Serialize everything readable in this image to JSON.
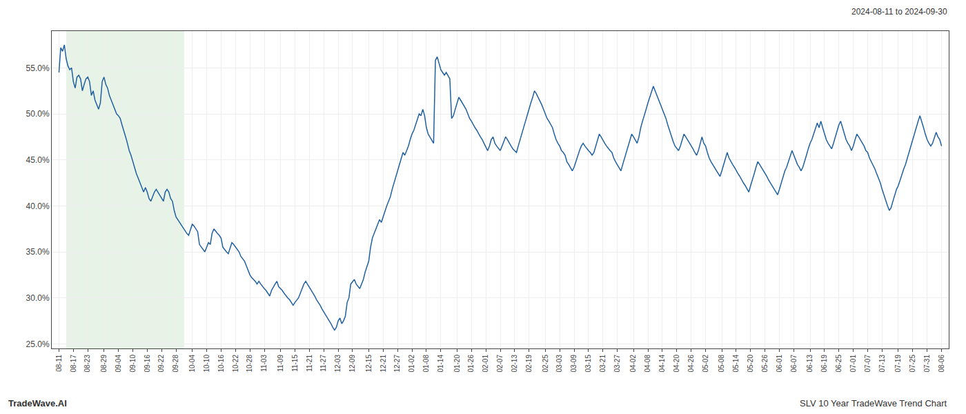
{
  "chart_data": {
    "type": "line",
    "title": "SLV 10 Year TradeWave Trend Chart",
    "subtitle": "2024-08-11 to 2024-09-30",
    "annotations": [
      "TradeWave.AI"
    ],
    "color": "#2060a0",
    "grid": true,
    "ylim": [
      24.5,
      59.0
    ],
    "yticks": [
      {
        "value": 25.0,
        "label": "25.0%"
      },
      {
        "value": 30.0,
        "label": "30.0%"
      },
      {
        "value": 35.0,
        "label": "35.0%"
      },
      {
        "value": 40.0,
        "label": "40.0%"
      },
      {
        "value": 45.0,
        "label": "45.0%"
      },
      {
        "value": 50.0,
        "label": "50.0%"
      },
      {
        "value": 55.0,
        "label": "55.0%"
      }
    ],
    "shade": {
      "from": "08-17",
      "to": "09-28",
      "color": "#d4ead4"
    },
    "categories": [
      "08-11",
      null,
      null,
      null,
      null,
      null,
      null,
      null,
      "08-17",
      null,
      null,
      null,
      null,
      null,
      null,
      null,
      "08-23",
      null,
      null,
      null,
      null,
      null,
      null,
      null,
      null,
      "08-29",
      null,
      null,
      null,
      null,
      null,
      null,
      null,
      "09-04",
      null,
      null,
      null,
      null,
      null,
      null,
      null,
      "09-10",
      null,
      null,
      null,
      null,
      null,
      null,
      null,
      "09-16",
      null,
      null,
      null,
      null,
      null,
      null,
      null,
      "09-22",
      null,
      null,
      null,
      null,
      null,
      null,
      null,
      "09-28",
      null,
      null,
      null,
      null,
      null,
      null,
      null,
      null,
      "10-04",
      null,
      null,
      null,
      null,
      null,
      null,
      null,
      "10-10",
      null,
      null,
      null,
      null,
      null,
      null,
      null,
      "10-16",
      null,
      null,
      null,
      null,
      null,
      null,
      null,
      "10-22",
      null,
      null,
      null,
      null,
      null,
      null,
      null,
      "10-28",
      null,
      null,
      null,
      null,
      null,
      null,
      null,
      "11-03",
      null,
      null,
      null,
      null,
      null,
      null,
      null,
      null,
      "11-09",
      null,
      null,
      null,
      null,
      null,
      null,
      null,
      "11-15",
      null,
      null,
      null,
      null,
      null,
      null,
      null,
      "11-21",
      null,
      null,
      null,
      null,
      null,
      null,
      null,
      "11-27",
      null,
      null,
      null,
      null,
      null,
      null,
      null,
      "12-03",
      null,
      null,
      null,
      null,
      null,
      null,
      null,
      "12-09",
      null,
      null,
      null,
      null,
      null,
      null,
      null,
      null,
      "12-15",
      null,
      null,
      null,
      null,
      null,
      null,
      null,
      "12-21",
      null,
      null,
      null,
      null,
      null,
      null,
      null,
      "12-27",
      null,
      null,
      null,
      null,
      null,
      null,
      null,
      "01-02",
      null,
      null,
      null,
      null,
      null,
      null,
      null,
      "01-08",
      null,
      null,
      null,
      null,
      null,
      null,
      null,
      "01-14",
      null,
      null,
      null,
      null,
      null,
      null,
      null,
      null,
      "01-20",
      null,
      null,
      null,
      null,
      null,
      null,
      null,
      "01-26",
      null,
      null,
      null,
      null,
      null,
      null,
      null,
      "02-01",
      null,
      null,
      null,
      null,
      null,
      null,
      null,
      "02-07",
      null,
      null,
      null,
      null,
      null,
      null,
      null,
      "02-13",
      null,
      null,
      null,
      null,
      null,
      null,
      null,
      "02-19",
      null,
      null,
      null,
      null,
      null,
      null,
      null,
      null,
      "02-25",
      null,
      null,
      null,
      null,
      null,
      null,
      null,
      "03-03",
      null,
      null,
      null,
      null,
      null,
      null,
      null,
      "03-09",
      null,
      null,
      null,
      null,
      null,
      null,
      null,
      "03-15",
      null,
      null,
      null,
      null,
      null,
      null,
      null,
      "03-21",
      null,
      null,
      null,
      null,
      null,
      null,
      null,
      "03-27",
      null,
      null,
      null,
      null,
      null,
      null,
      null,
      null,
      "04-02",
      null,
      null,
      null,
      null,
      null,
      null,
      null,
      "04-08",
      null,
      null,
      null,
      null,
      null,
      null,
      null,
      "04-14",
      null,
      null,
      null,
      null,
      null,
      null,
      null,
      "04-20",
      null,
      null,
      null,
      null,
      null,
      null,
      null,
      "04-26",
      null,
      null,
      null,
      null,
      null,
      null,
      null,
      "05-02",
      null,
      null,
      null,
      null,
      null,
      null,
      null,
      null,
      "05-08",
      null,
      null,
      null,
      null,
      null,
      null,
      null,
      "05-14",
      null,
      null,
      null,
      null,
      null,
      null,
      null,
      "05-20",
      null,
      null,
      null,
      null,
      null,
      null,
      null,
      "05-26",
      null,
      null,
      null,
      null,
      null,
      null,
      null,
      "06-01",
      null,
      null,
      null,
      null,
      null,
      null,
      null,
      "06-07",
      null,
      null,
      null,
      null,
      null,
      null,
      null,
      null,
      "06-13",
      null,
      null,
      null,
      null,
      null,
      null,
      null,
      "06-19",
      null,
      null,
      null,
      null,
      null,
      null,
      null,
      "06-25",
      null,
      null,
      null,
      null,
      null,
      null,
      null,
      "07-01",
      null,
      null,
      null,
      null,
      null,
      null,
      null,
      "07-07",
      null,
      null,
      null,
      null,
      null,
      null,
      null,
      "07-13",
      null,
      null,
      null,
      null,
      null,
      null,
      null,
      null,
      "07-19",
      null,
      null,
      null,
      null,
      null,
      null,
      null,
      "07-25",
      null,
      null,
      null,
      null,
      null,
      null,
      null,
      "07-31",
      null,
      null,
      null,
      null,
      null,
      null,
      null,
      "08-06"
    ],
    "values": [
      54.5,
      57.2,
      56.8,
      57.5,
      56.0,
      55.2,
      54.8,
      55.0,
      53.5,
      52.8,
      54.0,
      54.2,
      53.8,
      52.5,
      53.2,
      53.8,
      54.0,
      53.5,
      52.0,
      52.5,
      51.5,
      51.0,
      50.5,
      51.2,
      53.5,
      54.0,
      53.2,
      52.8,
      52.0,
      51.5,
      51.0,
      50.5,
      50.0,
      49.8,
      49.5,
      48.8,
      48.2,
      47.5,
      46.8,
      46.0,
      45.5,
      44.8,
      44.2,
      43.5,
      43.0,
      42.5,
      42.0,
      41.5,
      42.0,
      41.5,
      40.8,
      40.5,
      41.0,
      41.5,
      41.8,
      41.5,
      41.2,
      40.8,
      40.5,
      41.5,
      41.8,
      41.5,
      40.8,
      40.5,
      39.5,
      38.8,
      38.5,
      38.2,
      37.8,
      37.5,
      37.2,
      37.0,
      36.8,
      37.5,
      38.0,
      37.8,
      37.5,
      37.2,
      35.8,
      35.5,
      35.2,
      35.0,
      35.5,
      36.0,
      35.8,
      37.0,
      37.5,
      37.2,
      37.0,
      36.8,
      36.5,
      35.5,
      35.2,
      35.0,
      34.8,
      35.5,
      36.0,
      35.8,
      35.5,
      35.2,
      35.0,
      34.5,
      34.2,
      34.0,
      33.5,
      33.0,
      32.5,
      32.2,
      32.0,
      31.8,
      31.5,
      31.8,
      31.5,
      31.2,
      31.0,
      30.8,
      30.5,
      30.2,
      30.8,
      31.2,
      31.5,
      31.8,
      31.2,
      31.0,
      30.8,
      30.5,
      30.2,
      30.0,
      29.8,
      29.5,
      29.2,
      29.5,
      29.8,
      30.0,
      30.5,
      31.0,
      31.5,
      31.8,
      31.5,
      31.2,
      30.8,
      30.5,
      30.2,
      29.8,
      29.5,
      29.2,
      28.8,
      28.5,
      28.2,
      27.8,
      27.5,
      27.2,
      26.8,
      26.5,
      26.8,
      27.5,
      27.8,
      27.2,
      27.5,
      28.0,
      29.5,
      30.0,
      31.5,
      31.8,
      32.0,
      31.5,
      31.2,
      31.0,
      31.5,
      32.0,
      32.8,
      33.5,
      34.0,
      35.5,
      36.5,
      37.0,
      37.5,
      38.0,
      38.5,
      38.2,
      38.8,
      39.5,
      40.0,
      40.5,
      41.0,
      41.8,
      42.5,
      43.2,
      43.8,
      44.5,
      45.2,
      45.8,
      45.5,
      46.0,
      46.5,
      47.2,
      47.8,
      48.2,
      48.8,
      49.5,
      50.0,
      49.8,
      50.5,
      49.8,
      48.5,
      47.8,
      47.5,
      47.2,
      46.8,
      55.8,
      56.2,
      55.5,
      54.8,
      54.5,
      54.2,
      54.5,
      54.2,
      53.8,
      49.5,
      49.8,
      50.5,
      51.2,
      51.8,
      51.5,
      51.2,
      50.8,
      50.5,
      50.0,
      49.5,
      49.2,
      48.8,
      48.5,
      48.2,
      47.8,
      47.5,
      47.2,
      46.8,
      46.5,
      46.0,
      46.5,
      47.2,
      47.5,
      46.8,
      46.5,
      46.2,
      46.0,
      46.5,
      47.0,
      47.5,
      47.2,
      46.8,
      46.5,
      46.2,
      46.0,
      45.8,
      46.5,
      47.2,
      47.8,
      48.5,
      49.2,
      49.8,
      50.5,
      51.2,
      51.8,
      52.5,
      52.2,
      51.8,
      51.5,
      51.0,
      50.5,
      50.0,
      49.5,
      49.2,
      48.8,
      48.5,
      47.8,
      47.2,
      46.8,
      46.5,
      46.0,
      45.8,
      45.5,
      44.8,
      44.5,
      44.2,
      43.8,
      44.2,
      44.8,
      45.5,
      46.0,
      46.5,
      46.8,
      46.5,
      46.2,
      46.0,
      45.8,
      45.5,
      45.8,
      46.5,
      47.2,
      47.8,
      47.5,
      47.2,
      46.8,
      46.5,
      46.2,
      46.0,
      45.8,
      45.2,
      44.8,
      44.5,
      44.2,
      43.8,
      44.5,
      45.2,
      45.8,
      46.5,
      47.2,
      47.8,
      47.5,
      47.2,
      46.8,
      47.5,
      48.5,
      49.2,
      49.8,
      50.5,
      51.2,
      51.8,
      52.5,
      53.0,
      52.5,
      52.0,
      51.5,
      51.0,
      50.5,
      50.0,
      49.5,
      48.8,
      48.2,
      47.5,
      47.0,
      46.5,
      46.2,
      46.0,
      46.5,
      47.2,
      47.8,
      47.5,
      47.2,
      46.8,
      46.5,
      46.2,
      45.8,
      45.5,
      46.0,
      46.8,
      47.5,
      46.8,
      46.5,
      45.8,
      45.2,
      44.8,
      44.5,
      44.2,
      43.8,
      43.5,
      43.2,
      43.8,
      44.5,
      45.2,
      45.8,
      45.2,
      44.8,
      44.5,
      44.2,
      43.8,
      43.5,
      43.2,
      42.8,
      42.5,
      42.2,
      41.8,
      41.5,
      42.2,
      42.8,
      43.5,
      44.2,
      44.8,
      44.5,
      44.2,
      43.8,
      43.5,
      43.2,
      42.8,
      42.5,
      42.2,
      41.8,
      41.5,
      41.2,
      41.8,
      42.5,
      43.2,
      43.8,
      44.2,
      44.8,
      45.5,
      46.0,
      45.5,
      45.0,
      44.5,
      44.2,
      43.8,
      44.2,
      44.8,
      45.5,
      46.2,
      46.8,
      47.2,
      47.8,
      48.5,
      49.0,
      48.5,
      49.2,
      48.5,
      47.8,
      47.2,
      46.8,
      46.5,
      46.2,
      46.8,
      47.5,
      48.2,
      48.8,
      49.2,
      48.5,
      47.8,
      47.2,
      46.8,
      46.5,
      46.0,
      46.5,
      47.2,
      47.8,
      47.5,
      47.2,
      46.8,
      46.5,
      46.0,
      45.8,
      45.2,
      44.8,
      44.5,
      44.0,
      43.5,
      43.0,
      42.5,
      41.8,
      41.2,
      40.5,
      40.0,
      39.5,
      39.8,
      40.5,
      41.2,
      41.8,
      42.2,
      42.8,
      43.5,
      44.0,
      44.5,
      45.2,
      45.8,
      46.5,
      47.2,
      47.8,
      48.5,
      49.2,
      49.8,
      49.2,
      48.5,
      47.8,
      47.2,
      46.8,
      46.5,
      46.8,
      47.5,
      48.0,
      47.5,
      47.2,
      46.5
    ]
  }
}
